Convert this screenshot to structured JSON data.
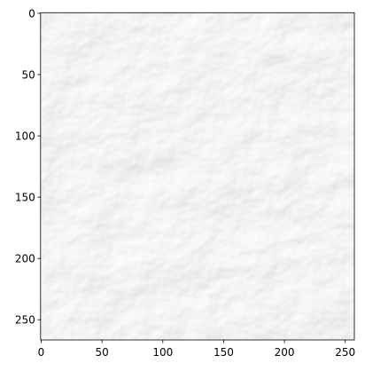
{
  "chart_data": {
    "type": "image",
    "xlim": [
      -0.5,
      257.5
    ],
    "ylim": [
      266.5,
      -0.5
    ],
    "xticks": [
      0,
      50,
      100,
      150,
      200,
      250
    ],
    "yticks": [
      0,
      50,
      100,
      150,
      200,
      250
    ]
  }
}
